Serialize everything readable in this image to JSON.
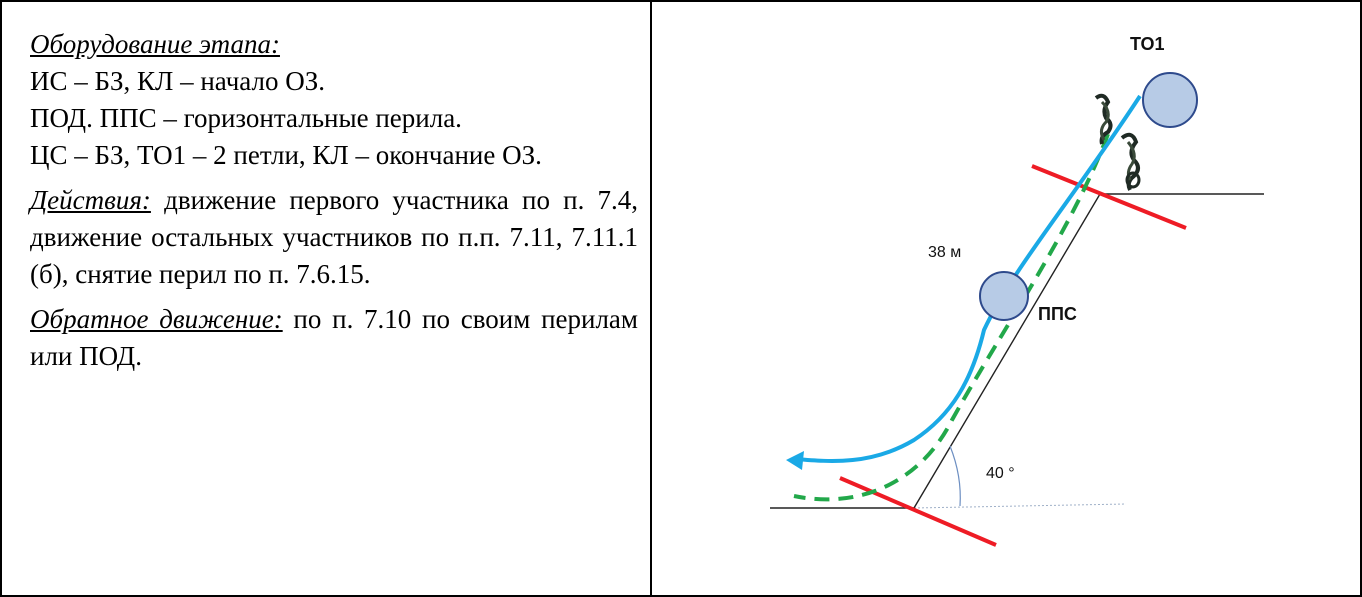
{
  "left": {
    "equipment_heading": "Оборудование этапа:",
    "equipment_lines": [
      "ИС – БЗ, КЛ – начало ОЗ.",
      "ПОД. ППС – горизонтальные перила.",
      "ЦС – БЗ, ТО1 – 2 петли, КЛ – окончание ОЗ."
    ],
    "actions_heading": "Действия:",
    "actions_text": " движение первого участника по п. 7.4, движение остальных участников по п.п. 7.11, 7.11.1 (б), снятие перил по п. 7.6.15.",
    "return_heading": "Обратное движение:",
    "return_text": " по п. 7.10 по своим перилам или ПОД."
  },
  "diagram": {
    "to1_label": "ТО1",
    "length_label": "38 м",
    "pps_label": "ППС",
    "angle_label": "40 °",
    "colors": {
      "rope_blue": "#1aa9e6",
      "rope_green": "#22a84a",
      "boundary_red": "#ee1c25",
      "pulley_fill": "#b7cbe6",
      "pulley_stroke": "#2e4a8c"
    }
  }
}
